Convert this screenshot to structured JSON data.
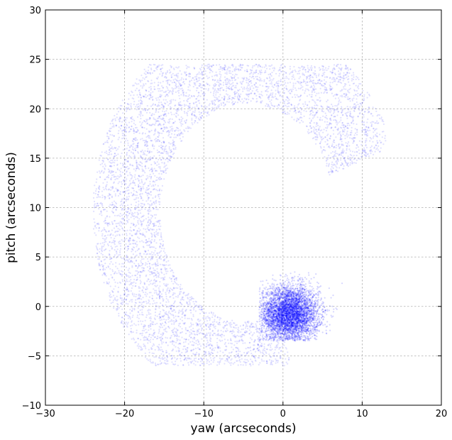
{
  "chart_data": {
    "type": "scatter",
    "title": "",
    "xlabel": "yaw (arcseconds)",
    "ylabel": "pitch (arcseconds)",
    "xlim": [
      -30,
      20
    ],
    "ylim": [
      -10,
      30
    ],
    "xticks": [
      -30,
      -20,
      -10,
      0,
      10,
      20
    ],
    "yticks": [
      -10,
      -5,
      0,
      5,
      10,
      15,
      20,
      25,
      30
    ],
    "xtick_labels": [
      "−30",
      "−20",
      "−10",
      "0",
      "10",
      "20"
    ],
    "ytick_labels": [
      "−10",
      "−5",
      "0",
      "5",
      "10",
      "15",
      "20",
      "25",
      "30"
    ],
    "grid": true,
    "legend": "none",
    "marker_color": "#0000ff",
    "series": [
      {
        "distribution": "dense core cluster",
        "center": [
          0.8,
          -0.8
        ],
        "spread": [
          2.3,
          1.8
        ],
        "x_range": [
          -3,
          7.5
        ],
        "y_range": [
          -3.5,
          3.5
        ]
      },
      {
        "distribution": "diffuse crescent arc",
        "arc_center": [
          -4.5,
          9.5
        ],
        "inner_radius": 11,
        "outer_radius": 19.5,
        "angle_range_deg": [
          20,
          290
        ],
        "x_range": [
          -24.5,
          13
        ],
        "y_range": [
          -6,
          24.5
        ]
      }
    ]
  }
}
